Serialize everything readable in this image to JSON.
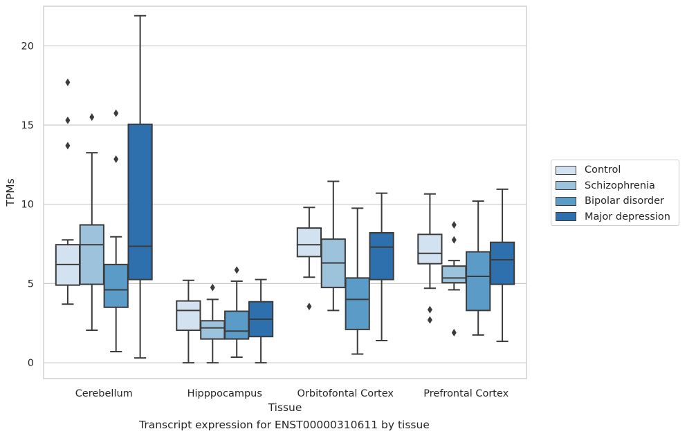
{
  "chart_data": {
    "type": "box",
    "xlabel": "Tissue",
    "ylabel": "TPMs",
    "caption": "Transcript expression for ENST00000310611 by tissue",
    "ylim": [
      -1,
      22.5
    ],
    "yticks": [
      0,
      5,
      10,
      15,
      20
    ],
    "grid": true,
    "legend_position": "right",
    "categories": [
      "Cerebellum",
      "Hipppocampus",
      "Orbitofontal Cortex",
      "Prefrontal Cortex"
    ],
    "series": [
      {
        "name": "Control",
        "color": "#d2e2f0",
        "boxes": [
          {
            "whislo": 3.7,
            "q1": 4.9,
            "med": 6.2,
            "q3": 7.45,
            "whishi": 7.75,
            "fliers": [
              13.7,
              15.3,
              17.7
            ]
          },
          {
            "whislo": 0.0,
            "q1": 2.05,
            "med": 3.3,
            "q3": 3.9,
            "whishi": 5.2,
            "fliers": []
          },
          {
            "whislo": 5.4,
            "q1": 6.7,
            "med": 7.45,
            "q3": 8.5,
            "whishi": 9.8,
            "fliers": [
              3.55
            ]
          },
          {
            "whislo": 4.7,
            "q1": 6.25,
            "med": 6.9,
            "q3": 8.1,
            "whishi": 10.65,
            "fliers": [
              2.7,
              3.35
            ]
          }
        ]
      },
      {
        "name": "Schizophrenia",
        "color": "#9dc3dc",
        "boxes": [
          {
            "whislo": 2.05,
            "q1": 4.95,
            "med": 7.45,
            "q3": 8.7,
            "whishi": 13.25,
            "fliers": [
              15.5
            ]
          },
          {
            "whislo": 0.0,
            "q1": 1.5,
            "med": 2.2,
            "q3": 2.65,
            "whishi": 4.0,
            "fliers": [
              4.75
            ]
          },
          {
            "whislo": 3.3,
            "q1": 4.75,
            "med": 6.3,
            "q3": 7.8,
            "whishi": 11.45,
            "fliers": []
          },
          {
            "whislo": 4.6,
            "q1": 5.05,
            "med": 5.35,
            "q3": 6.1,
            "whishi": 6.45,
            "fliers": [
              1.9,
              7.75,
              8.7
            ]
          }
        ]
      },
      {
        "name": "Bipolar disorder",
        "color": "#5b9bc8",
        "boxes": [
          {
            "whislo": 0.7,
            "q1": 3.5,
            "med": 4.6,
            "q3": 6.2,
            "whishi": 7.95,
            "fliers": [
              12.85,
              15.75
            ]
          },
          {
            "whislo": 0.35,
            "q1": 1.5,
            "med": 2.0,
            "q3": 3.25,
            "whishi": 5.15,
            "fliers": [
              5.85
            ]
          },
          {
            "whislo": 0.55,
            "q1": 2.1,
            "med": 4.0,
            "q3": 5.35,
            "whishi": 9.75,
            "fliers": []
          },
          {
            "whislo": 1.75,
            "q1": 3.3,
            "med": 5.45,
            "q3": 7.0,
            "whishi": 10.2,
            "fliers": []
          }
        ]
      },
      {
        "name": "Major depression",
        "color": "#2e70ad",
        "boxes": [
          {
            "whislo": 0.3,
            "q1": 5.25,
            "med": 7.35,
            "q3": 15.05,
            "whishi": 21.9,
            "fliers": []
          },
          {
            "whislo": 0.0,
            "q1": 1.65,
            "med": 2.75,
            "q3": 3.85,
            "whishi": 5.25,
            "fliers": []
          },
          {
            "whislo": 1.4,
            "q1": 5.25,
            "med": 7.3,
            "q3": 8.2,
            "whishi": 10.7,
            "fliers": []
          },
          {
            "whislo": 1.35,
            "q1": 4.95,
            "med": 6.5,
            "q3": 7.6,
            "whishi": 10.95,
            "fliers": []
          }
        ]
      }
    ]
  }
}
